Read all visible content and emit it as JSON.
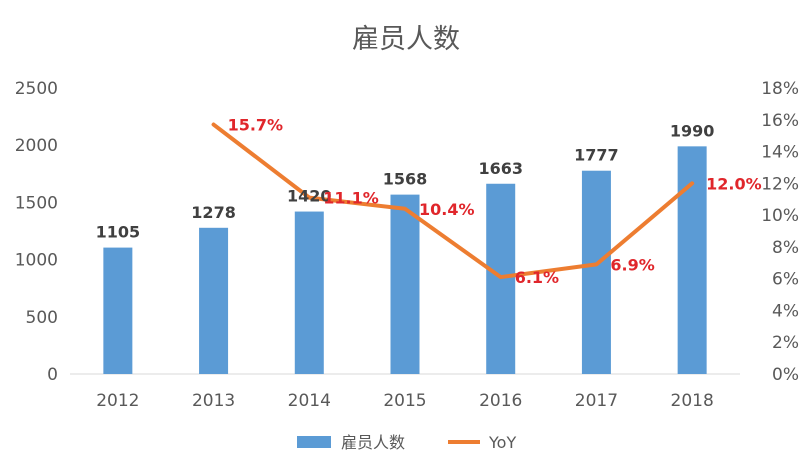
{
  "chart_data": {
    "type": "bar",
    "title": "雇员人数",
    "categories": [
      "2012",
      "2013",
      "2014",
      "2015",
      "2016",
      "2017",
      "2018"
    ],
    "series": [
      {
        "name": "雇员人数",
        "type": "bar",
        "axis": "left",
        "values": [
          1105,
          1278,
          1420,
          1568,
          1663,
          1777,
          1990
        ],
        "data_labels": [
          "1105",
          "1278",
          "1420",
          "1568",
          "1663",
          "1777",
          "1990"
        ]
      },
      {
        "name": "YoY",
        "type": "line",
        "axis": "right",
        "values": [
          null,
          0.157,
          0.111,
          0.104,
          0.061,
          0.069,
          0.12
        ],
        "data_labels": [
          "",
          "15.7%",
          "11.1%",
          "10.4%",
          "6.1%",
          "6.9%",
          "12.0%"
        ]
      }
    ],
    "y_left": {
      "ylim": [
        0,
        2500
      ],
      "ticks": [
        "0",
        "500",
        "1000",
        "1500",
        "2000",
        "2500"
      ]
    },
    "y_right": {
      "ylim": [
        0,
        0.18
      ],
      "ticks": [
        "0%",
        "2%",
        "4%",
        "6%",
        "8%",
        "10%",
        "12%",
        "14%",
        "16%",
        "18%"
      ]
    },
    "legend": {
      "position": "bottom",
      "entries": [
        "雇员人数",
        "YoY"
      ]
    },
    "grid": false,
    "colors": {
      "bar": "#5b9bd5",
      "line": "#ed7d31",
      "yoy_label": "#e0262b",
      "text": "#595959"
    }
  }
}
